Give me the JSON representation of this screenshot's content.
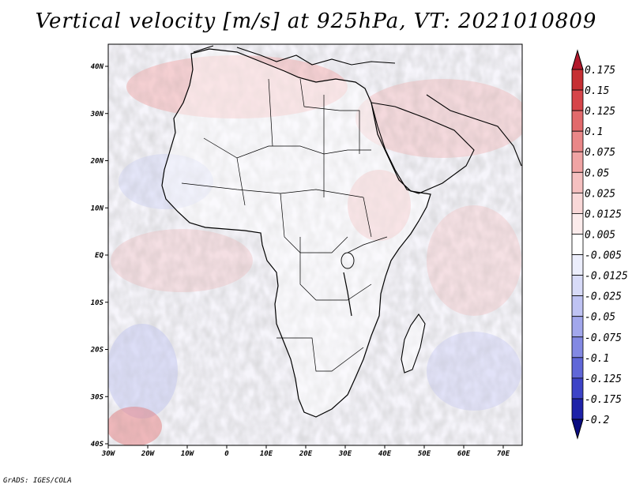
{
  "title": "Vertical velocity [m/s] at 925hPa, VT: 2021010809",
  "footer": "GrADS: IGES/COLA",
  "map": {
    "lon_range": [
      -30,
      75
    ],
    "lat_range": [
      -40,
      45
    ],
    "lat_ticks": [
      "40N",
      "30N",
      "20N",
      "10N",
      "EQ",
      "10S",
      "20S",
      "30S",
      "40S"
    ],
    "lon_ticks": [
      "30W",
      "20W",
      "10W",
      "0",
      "10E",
      "20E",
      "30E",
      "40E",
      "50E",
      "60E",
      "70E"
    ]
  },
  "colorbar": {
    "labels": [
      "0.175",
      "0.15",
      "0.125",
      "0.1",
      "0.075",
      "0.05",
      "0.025",
      "0.0125",
      "0.005",
      "-0.005",
      "-0.0125",
      "-0.025",
      "-0.05",
      "-0.075",
      "-0.1",
      "-0.125",
      "-0.175",
      "-0.2"
    ],
    "colors": [
      "#b2182b",
      "#c62f33",
      "#d6454a",
      "#e26a6c",
      "#ea8788",
      "#f0a4a4",
      "#f5c0c0",
      "#f9d8d8",
      "#fcecec",
      "#ffffff",
      "#eceefc",
      "#d8dbf8",
      "#bfc3f3",
      "#a2a7ec",
      "#8389e3",
      "#6067d8",
      "#3d43c7",
      "#1e22a8",
      "#0a0c80"
    ]
  }
}
